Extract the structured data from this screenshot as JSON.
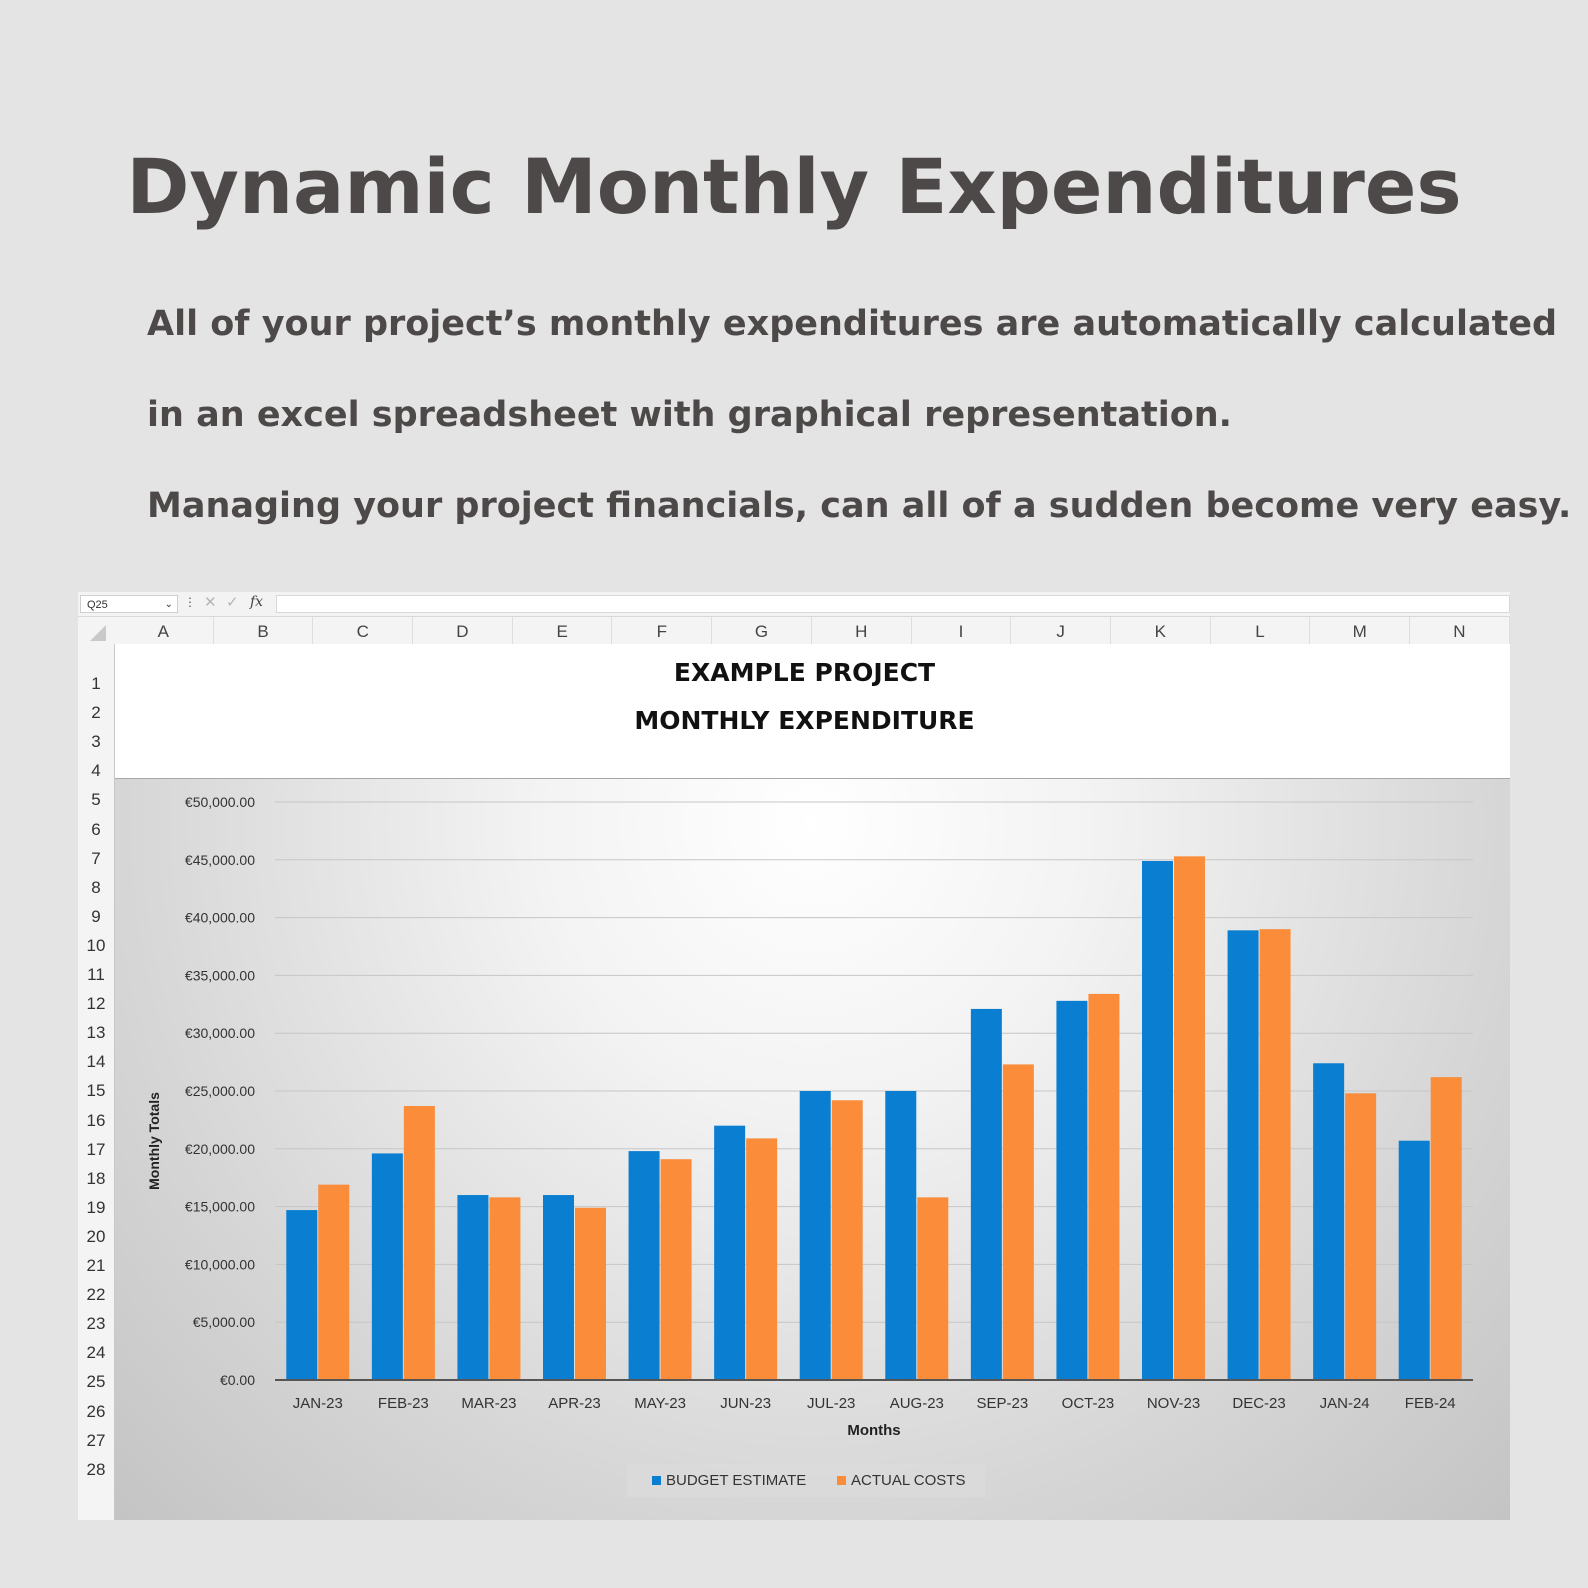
{
  "page": {
    "headline": "Dynamic Monthly Expenditures",
    "paragraphs": [
      "All of your project’s monthly expenditures are automatically calculated",
      "in an excel spreadsheet with graphical representation.",
      "Managing your project financials, can all of a sudden become very easy."
    ]
  },
  "spreadsheet": {
    "name_box": "Q25",
    "fx_label": "fx",
    "columns": [
      "A",
      "B",
      "C",
      "D",
      "E",
      "F",
      "G",
      "H",
      "I",
      "J",
      "K",
      "L",
      "M",
      "N"
    ],
    "rows": [
      "1",
      "2",
      "3",
      "4",
      "5",
      "6",
      "7",
      "8",
      "9",
      "10",
      "11",
      "12",
      "13",
      "14",
      "15",
      "16",
      "17",
      "18",
      "19",
      "20",
      "21",
      "22",
      "23",
      "24",
      "25",
      "26",
      "27",
      "28"
    ],
    "title_line1": "EXAMPLE PROJECT",
    "title_line2": "MONTHLY EXPENDITURE"
  },
  "colors": {
    "budget": "#0a7fd1",
    "actual": "#fb8c3a"
  },
  "chart_data": {
    "type": "bar",
    "title": "",
    "xlabel": "Months",
    "ylabel": "Monthly Totals",
    "ylim": [
      0,
      50000
    ],
    "y_ticks": [
      0,
      5000,
      10000,
      15000,
      20000,
      25000,
      30000,
      35000,
      40000,
      45000,
      50000
    ],
    "y_tick_labels": [
      "€0.00",
      "€5,000.00",
      "€10,000.00",
      "€15,000.00",
      "€20,000.00",
      "€25,000.00",
      "€30,000.00",
      "€35,000.00",
      "€40,000.00",
      "€45,000.00",
      "€50,000.00"
    ],
    "grid": true,
    "legend_position": "bottom",
    "categories": [
      "JAN-23",
      "FEB-23",
      "MAR-23",
      "APR-23",
      "MAY-23",
      "JUN-23",
      "JUL-23",
      "AUG-23",
      "SEP-23",
      "OCT-23",
      "NOV-23",
      "DEC-23",
      "JAN-24",
      "FEB-24"
    ],
    "series": [
      {
        "name": "BUDGET ESTIMATE",
        "values": [
          14700,
          19600,
          16000,
          16000,
          19800,
          22000,
          25000,
          25000,
          32100,
          32800,
          44900,
          38900,
          27400,
          20700
        ]
      },
      {
        "name": "ACTUAL COSTS",
        "values": [
          16900,
          23700,
          15800,
          14900,
          19100,
          20900,
          24200,
          15800,
          27300,
          33400,
          45300,
          39000,
          24800,
          26200
        ]
      }
    ]
  }
}
